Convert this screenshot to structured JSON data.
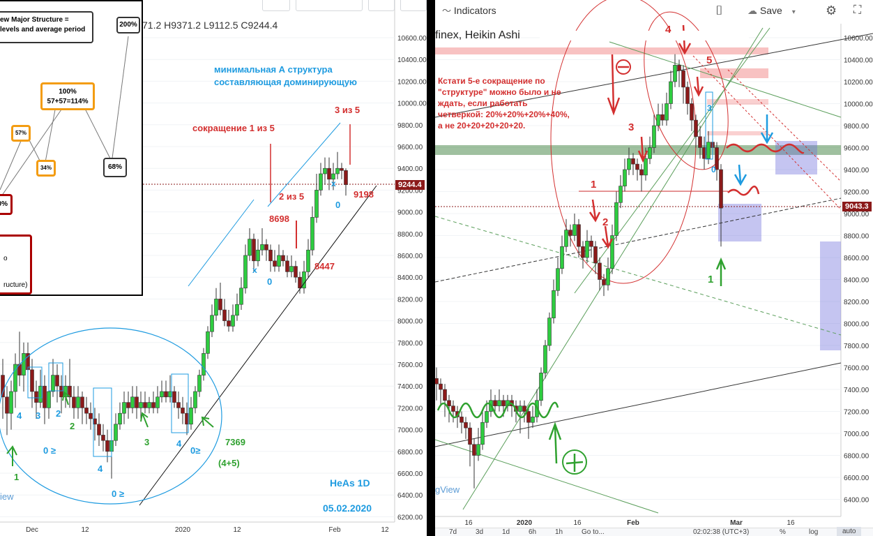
{
  "left_panel": {
    "ohlc_text": "71.2  H9371.2  L9112.5  C9244.4",
    "current_price_tag": "9244.4",
    "price_axis": [
      "10600.00",
      "10400.00",
      "10200.00",
      "10000.00",
      "9800.00",
      "9600.00",
      "9400.00",
      "9200.00",
      "9000.00",
      "8800.00",
      "8600.00",
      "8400.00",
      "8200.00",
      "8000.00",
      "7800.00",
      "7600.00",
      "7400.00",
      "7200.00",
      "7000.00",
      "6800.00",
      "6600.00",
      "6400.00",
      "6200.00"
    ],
    "time_axis": [
      "Dec",
      "12",
      "2020",
      "12",
      "Feb",
      "12"
    ],
    "annotations": {
      "blue_title_line1": "минимальная А структура",
      "blue_title_line2": "составляющая доминирующую",
      "contraction_1of5": "сокращение  1 из 5",
      "label_3of5": "3 из 5",
      "label_2of5": "2 из 5",
      "price_8698": "8698",
      "price_8447": "8447",
      "price_9198": "9198",
      "price_7369": "7369",
      "label_4plus5": "(4+5)",
      "heas_1d": "HeAs 1D",
      "date": "05.02.2020",
      "watermark": "iew",
      "x_mark1": "x",
      "x_mark2": "x",
      "zero_a": "0",
      "zero_b": "0",
      "wave_4": "4",
      "wave_3": "3",
      "wave_2": "2",
      "wave_2g": "2",
      "wave_1": "1",
      "wave_0a": "0 ≥",
      "wave_4b": "4",
      "wave_0b": "0 ≥",
      "wave_3g": "3",
      "wave_4c": "4",
      "wave_0c": "0≥"
    },
    "inset": {
      "title_line1": "ew Major Structure =",
      "title_line2": "levels and average period",
      "box_200": "200%",
      "box_100_line1": "100%",
      "box_100_line2": "57+57=114%",
      "box_57": "57%",
      "box_34": "34%",
      "box_68": "68%",
      "box_0": "0%",
      "bottom_text1": "o",
      "bottom_text2": "ructure)"
    }
  },
  "right_panel": {
    "toolbar": {
      "indicators_label": "Indicators",
      "save_label": "Save"
    },
    "symbol_title": "finex, Heikin Ashi",
    "current_price_tag": "9043.3",
    "price_axis": [
      "10600.00",
      "10400.00",
      "10200.00",
      "10000.00",
      "9800.00",
      "9600.00",
      "9400.00",
      "9200.00",
      "9000.00",
      "8800.00",
      "8600.00",
      "8400.00",
      "8200.00",
      "8000.00",
      "7800.00",
      "7600.00",
      "7400.00",
      "7200.00",
      "7000.00",
      "6800.00",
      "6600.00",
      "6400.00"
    ],
    "time_axis": [
      "16",
      "2020",
      "16",
      "Feb",
      "Mar",
      "16"
    ],
    "bottom_bar": {
      "ranges": [
        "7d",
        "3d",
        "1d",
        "6h",
        "1h"
      ],
      "goto": "Go to...",
      "clock": "02:02:38 (UTC+3)",
      "pct": "%",
      "log": "log",
      "auto": "auto",
      "watermark": "gView"
    },
    "annotations": {
      "russian_note_line1": "Кстати 5-е сокращение по",
      "russian_note_line2": "\"структуре\" можно было и не",
      "russian_note_line3": "ждать, если работать",
      "russian_note_line4": "четверкой: 20%+20%+20%+40%,",
      "russian_note_line5": "а не 20+20+20+20+20.",
      "wave_4": "4",
      "wave_5": "5",
      "wave_3": "3",
      "wave_1": "1",
      "wave_2": "2",
      "wave_3b": "3",
      "wave_0": "0",
      "green_1": "1"
    }
  },
  "colors": {
    "bull": "#2ecc40",
    "bear": "#8b1a1a",
    "annot_red": "#d32f2f",
    "annot_blue": "#1e9be0",
    "annot_green": "#2fa12f",
    "inset_orange": "#f39c12"
  }
}
